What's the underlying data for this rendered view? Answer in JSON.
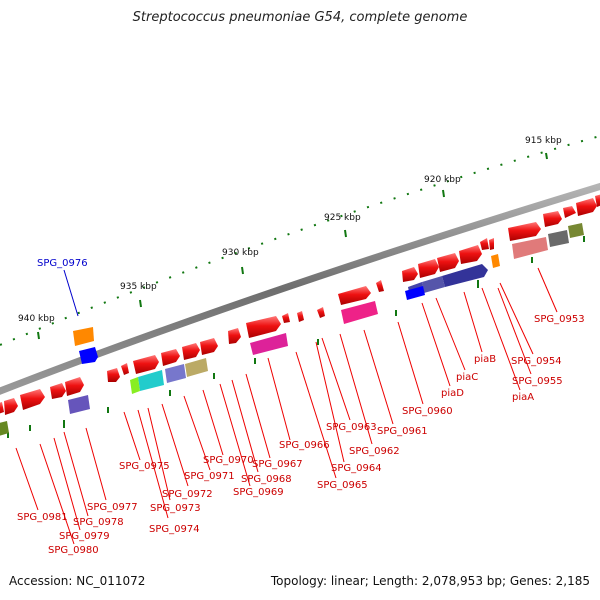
{
  "title": "Streptococcus pneumoniae G54, complete genome",
  "footer": {
    "accession": "Accession: NC_011072",
    "topology": "Topology: linear; Length: 2,078,953 bp; Genes: 2,185"
  },
  "ruler_labels": [
    "915 kbp",
    "920 kbp",
    "925 kbp",
    "930 kbp",
    "935 kbp",
    "940 kbp"
  ],
  "gene_labels": [
    "SPG_0953",
    "SPG_0954",
    "SPG_0955",
    "piaA",
    "piaB",
    "piaC",
    "piaD",
    "SPG_0960",
    "SPG_0961",
    "SPG_0962",
    "SPG_0963",
    "SPG_0964",
    "SPG_0965",
    "SPG_0966",
    "SPG_0967",
    "SPG_0968",
    "SPG_0969",
    "SPG_0970",
    "SPG_0971",
    "SPG_0972",
    "SPG_0973",
    "SPG_0974",
    "SPG_0975",
    "SPG_0976",
    "SPG_0977",
    "SPG_0978",
    "SPG_0979",
    "SPG_0980",
    "SPG_0981"
  ],
  "colors": {
    "backbone": "#7a7a7a",
    "gene_forward": "#ee1111",
    "label_red": "#cc0000",
    "label_blue": "#0000cc",
    "tick_green": "#117711"
  }
}
